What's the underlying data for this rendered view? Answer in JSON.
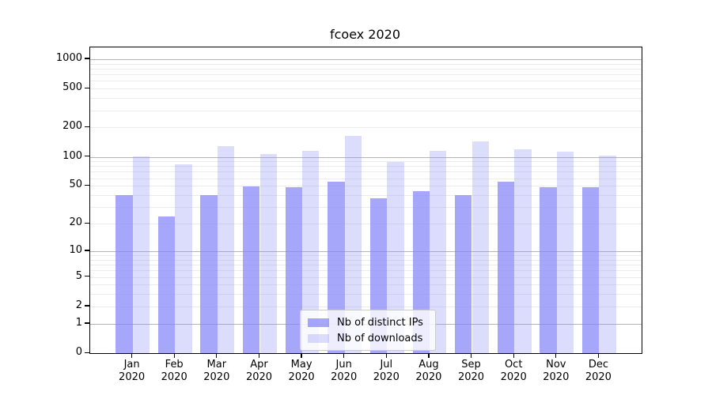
{
  "page": {
    "background": "#ffffff"
  },
  "chart_data": {
    "type": "bar",
    "title": "fcoex 2020",
    "x": {
      "months": [
        "Jan",
        "Feb",
        "Mar",
        "Apr",
        "May",
        "Jun",
        "Jul",
        "Aug",
        "Sep",
        "Oct",
        "Nov",
        "Dec"
      ],
      "year": "2020"
    },
    "series": [
      {
        "name": "Nb of distinct IPs",
        "color": "#8484fab8",
        "values": [
          40,
          24,
          40,
          49,
          48,
          55,
          37,
          44,
          40,
          55,
          48,
          48
        ]
      },
      {
        "name": "Nb of downloads",
        "color": "#9696f854",
        "values": [
          101,
          84,
          128,
          106,
          116,
          164,
          89,
          115,
          145,
          120,
          113,
          102
        ]
      }
    ],
    "y_axis": {
      "scale": "log1p",
      "ticks": [
        0,
        1,
        2,
        5,
        10,
        20,
        50,
        100,
        200,
        500,
        1000
      ],
      "major_gridlines": [
        1,
        10,
        100,
        1000
      ]
    },
    "grid": true,
    "legend_position": "lower-center",
    "colors": {
      "spine": "#000000",
      "major_grid": "#b4b4b4",
      "minor_grid": "#ebebeb"
    }
  }
}
